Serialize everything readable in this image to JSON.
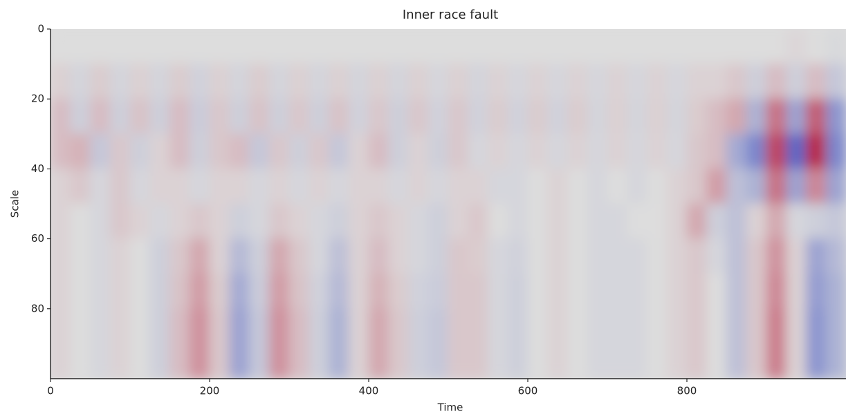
{
  "chart_data": {
    "type": "heatmap",
    "title": "Inner race fault",
    "xlabel": "Time",
    "ylabel": "Scale",
    "xlim": [
      0,
      1000
    ],
    "ylim": [
      0,
      100
    ],
    "invert_y": true,
    "xticks": [
      0,
      200,
      400,
      600,
      800
    ],
    "yticks": [
      0,
      20,
      40,
      60,
      80
    ],
    "colormap": "coolwarm",
    "clim": [
      -1,
      1
    ],
    "xedges": [
      0,
      25,
      50,
      75,
      100,
      125,
      150,
      175,
      200,
      225,
      250,
      275,
      300,
      325,
      350,
      375,
      400,
      425,
      450,
      475,
      500,
      525,
      550,
      575,
      600,
      625,
      650,
      675,
      700,
      725,
      750,
      775,
      800,
      825,
      850,
      875,
      900,
      925,
      950,
      975,
      1000
    ],
    "yedges": [
      0,
      10,
      20,
      30,
      40,
      50,
      60,
      70,
      80,
      90,
      100
    ],
    "values": [
      [
        0,
        0,
        0,
        0,
        0,
        0,
        0,
        0,
        0,
        0,
        0,
        0,
        0,
        0,
        0,
        0,
        0,
        0,
        0,
        0,
        0,
        0,
        0,
        0,
        0,
        0,
        0,
        0,
        0,
        0,
        0,
        0,
        0,
        0,
        0,
        0,
        0,
        0.03,
        0,
        -0.03
      ],
      [
        0.06,
        -0.06,
        0.08,
        -0.06,
        0.06,
        -0.06,
        0.08,
        -0.08,
        0.06,
        -0.06,
        0.08,
        -0.06,
        0.06,
        -0.06,
        0.06,
        -0.06,
        0.06,
        -0.06,
        0.06,
        -0.05,
        0.06,
        -0.06,
        0.05,
        -0.05,
        0.05,
        -0.05,
        0.05,
        -0.05,
        0.05,
        -0.05,
        0.05,
        -0.05,
        0.05,
        0.05,
        0.1,
        -0.1,
        0.15,
        -0.1,
        0.15,
        -0.15
      ],
      [
        0.15,
        -0.1,
        0.15,
        -0.1,
        0.12,
        -0.1,
        0.15,
        -0.12,
        0.1,
        -0.1,
        0.12,
        -0.1,
        0.1,
        -0.1,
        0.12,
        -0.08,
        0.1,
        -0.1,
        0.1,
        -0.08,
        0.1,
        -0.08,
        0.08,
        -0.08,
        0.08,
        -0.08,
        0.08,
        -0.06,
        0.06,
        -0.06,
        0.06,
        -0.06,
        0.08,
        0.15,
        0.25,
        -0.3,
        0.5,
        -0.4,
        0.6,
        -0.5
      ],
      [
        0.15,
        0.2,
        -0.15,
        0.1,
        -0.1,
        0.05,
        0.15,
        -0.1,
        0.1,
        0.15,
        -0.15,
        0.1,
        -0.1,
        0.1,
        -0.15,
        0.05,
        0.15,
        -0.1,
        0.05,
        -0.1,
        0.1,
        -0.05,
        0.05,
        -0.05,
        0.05,
        -0.05,
        0.05,
        -0.05,
        0.05,
        -0.05,
        0.05,
        -0.05,
        0.1,
        0.15,
        -0.35,
        -0.6,
        0.7,
        -0.8,
        0.85,
        -0.6
      ],
      [
        0.05,
        0.1,
        -0.05,
        0.1,
        -0.05,
        0.05,
        0.05,
        -0.05,
        0.05,
        0.05,
        -0.05,
        0.05,
        -0.05,
        0.05,
        -0.05,
        0.05,
        0.05,
        -0.05,
        0.05,
        -0.05,
        0.05,
        0.05,
        -0.05,
        -0.05,
        0,
        0.05,
        0,
        -0.05,
        0,
        -0.05,
        0,
        0.05,
        0.1,
        0.3,
        -0.2,
        -0.3,
        0.5,
        -0.4,
        0.4,
        -0.4
      ],
      [
        0.05,
        0,
        -0.05,
        0.1,
        0.05,
        -0.05,
        0.05,
        0.1,
        0.05,
        -0.1,
        -0.05,
        0.1,
        0.05,
        -0.05,
        -0.1,
        0.05,
        0.1,
        0.05,
        -0.05,
        -0.1,
        0.05,
        0.1,
        0,
        -0.05,
        0,
        0.05,
        0,
        -0.05,
        -0.05,
        0,
        0,
        0.05,
        0.25,
        -0.1,
        -0.2,
        0.05,
        0.25,
        -0.05,
        -0.1,
        -0.15
      ],
      [
        0.05,
        0,
        -0.05,
        0.05,
        0,
        -0.1,
        0.1,
        0.25,
        0.05,
        -0.25,
        -0.1,
        0.25,
        0.1,
        -0.05,
        -0.2,
        0.05,
        0.15,
        0.05,
        -0.05,
        -0.1,
        0.1,
        0.08,
        -0.05,
        -0.08,
        0,
        0.05,
        0,
        -0.05,
        -0.05,
        -0.05,
        0,
        0.05,
        0.1,
        -0.05,
        -0.2,
        0.1,
        0.35,
        0.05,
        -0.4,
        -0.25
      ],
      [
        0.05,
        0,
        -0.05,
        0.05,
        0,
        -0.1,
        0.12,
        0.3,
        0.08,
        -0.35,
        -0.12,
        0.3,
        0.12,
        -0.08,
        -0.25,
        0.05,
        0.2,
        0.08,
        -0.08,
        -0.12,
        0.1,
        0.1,
        -0.05,
        -0.1,
        0,
        0.05,
        0,
        -0.05,
        -0.05,
        -0.05,
        0,
        0.05,
        0.1,
        0,
        -0.2,
        0.1,
        0.4,
        0.05,
        -0.45,
        -0.3
      ],
      [
        0.05,
        0,
        -0.05,
        0.05,
        0,
        -0.1,
        0.15,
        0.35,
        0.1,
        -0.4,
        -0.15,
        0.35,
        0.15,
        -0.1,
        -0.3,
        0.05,
        0.25,
        0.1,
        -0.1,
        -0.15,
        0.1,
        0.1,
        -0.05,
        -0.1,
        0,
        0.05,
        0,
        -0.05,
        -0.05,
        -0.05,
        0,
        0.05,
        0.1,
        0,
        -0.2,
        0.1,
        0.45,
        0.05,
        -0.5,
        -0.3
      ],
      [
        0.05,
        0,
        -0.05,
        0.05,
        0,
        -0.1,
        0.15,
        0.35,
        0.1,
        -0.4,
        -0.15,
        0.35,
        0.15,
        -0.1,
        -0.3,
        0.05,
        0.25,
        0.1,
        -0.1,
        -0.15,
        0.1,
        0.1,
        -0.05,
        -0.1,
        0,
        0.05,
        0,
        -0.05,
        -0.05,
        -0.05,
        0,
        0.05,
        0.1,
        0,
        -0.2,
        0.1,
        0.45,
        0.05,
        -0.5,
        -0.3
      ]
    ]
  }
}
